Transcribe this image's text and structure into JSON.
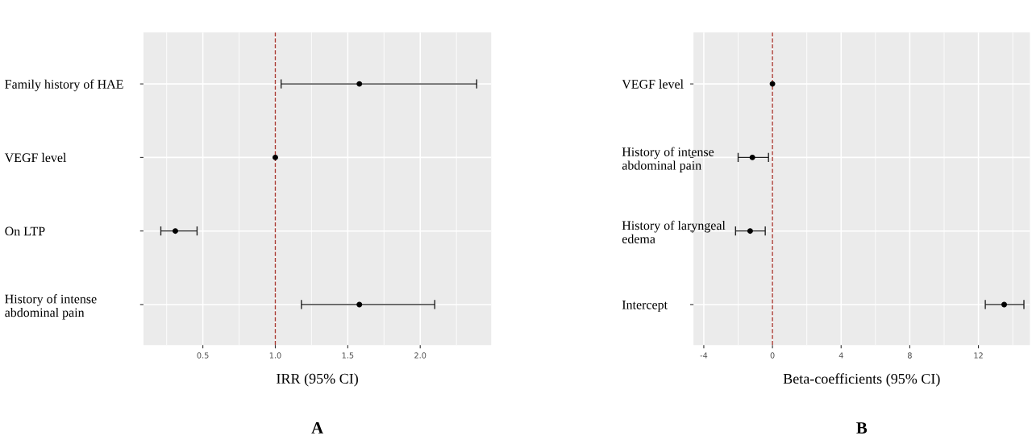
{
  "chart_data": [
    {
      "type": "scatter",
      "orientation": "horizontal",
      "categories": [
        "Family history of HAE",
        "VEGF level",
        "On LTP",
        "History of intense\nabdominal pain"
      ],
      "series": [
        {
          "color": "#000000",
          "values": [
            1.58,
            1.0,
            0.31,
            1.58
          ],
          "errors": [
            [
              1.04,
              2.39
            ],
            null,
            [
              0.21,
              0.46
            ],
            [
              1.18,
              2.1
            ]
          ]
        }
      ],
      "xlabel": "IRR (95% CI)",
      "xlim": [
        0.09,
        2.49
      ],
      "xticks": [
        0.5,
        {
          "value": 1,
          "label": "1.0"
        },
        1.5,
        {
          "value": 2,
          "label": "2.0"
        }
      ],
      "grid": true,
      "marker": "circle",
      "ref_lines": [
        {
          "axis": "x",
          "value": 1,
          "color": "#a83a32",
          "line_style": "dashed"
        }
      ],
      "annotations": [
        "A"
      ]
    },
    {
      "type": "scatter",
      "orientation": "horizontal",
      "categories": [
        "VEGF level",
        "History of intense\nabdominal pain",
        "History of laryngeal\nedema",
        "Intercept"
      ],
      "series": [
        {
          "color": "#000000",
          "values": [
            0,
            -1.17,
            -1.3,
            13.5
          ],
          "errors": [
            null,
            [
              -2.0,
              -0.23
            ],
            [
              -2.15,
              -0.42
            ],
            [
              12.4,
              14.65
            ]
          ]
        }
      ],
      "xlabel": "Beta-coefficients (95% CI)",
      "xlim": [
        -4.6,
        15.0
      ],
      "xticks": [
        -4,
        0,
        4,
        8,
        12
      ],
      "grid": true,
      "marker": "circle",
      "ref_lines": [
        {
          "axis": "x",
          "value": 0,
          "color": "#a83a32",
          "line_style": "dashed"
        }
      ],
      "annotations": [
        "B"
      ]
    }
  ]
}
